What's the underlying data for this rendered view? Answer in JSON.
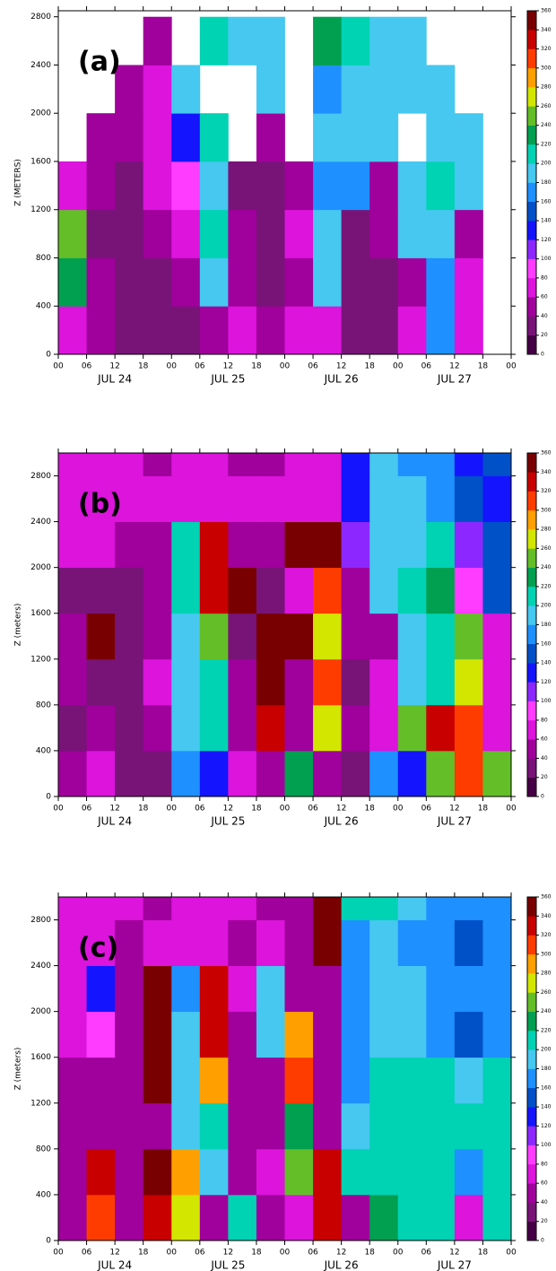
{
  "chart_data": [
    {
      "type": "heatmap",
      "panel_label": "(a)",
      "ylabel": "Z (METERS)",
      "xlim": [
        0,
        96
      ],
      "ylim": [
        0,
        2850
      ],
      "xticks": [
        {
          "value": 0,
          "label": "00"
        },
        {
          "value": 6,
          "label": "06"
        },
        {
          "value": 12,
          "label": "12"
        },
        {
          "value": 18,
          "label": "18"
        },
        {
          "value": 24,
          "label": "00"
        },
        {
          "value": 30,
          "label": "06"
        },
        {
          "value": 36,
          "label": "12"
        },
        {
          "value": 42,
          "label": "18"
        },
        {
          "value": 48,
          "label": "00"
        },
        {
          "value": 54,
          "label": "06"
        },
        {
          "value": 60,
          "label": "12"
        },
        {
          "value": 66,
          "label": "18"
        },
        {
          "value": 72,
          "label": "00"
        },
        {
          "value": 78,
          "label": "06"
        },
        {
          "value": 84,
          "label": "12"
        },
        {
          "value": 90,
          "label": "18"
        },
        {
          "value": 96,
          "label": "00"
        }
      ],
      "date_labels": [
        {
          "value": 12,
          "label": "JUL 24"
        },
        {
          "value": 36,
          "label": "JUL 25"
        },
        {
          "value": 60,
          "label": "JUL 26"
        },
        {
          "value": 84,
          "label": "JUL 27"
        }
      ],
      "yticks": [
        0,
        400,
        800,
        1200,
        1600,
        2000,
        2400,
        2800
      ],
      "x_edges": [
        0,
        6,
        12,
        18,
        24,
        30,
        36,
        42,
        48,
        54,
        60,
        66,
        72,
        78,
        84,
        90,
        96
      ],
      "y_edges": [
        0,
        400,
        800,
        1200,
        1600,
        2000,
        2400,
        2800
      ],
      "values": [
        [
          60,
          40,
          30,
          20,
          20,
          50,
          60,
          40,
          60,
          70,
          20,
          20,
          60,
          170,
          60,
          null
        ],
        [
          220,
          40,
          20,
          30,
          40,
          180,
          40,
          30,
          40,
          190,
          30,
          30,
          50,
          160,
          60,
          null
        ],
        [
          240,
          30,
          20,
          40,
          60,
          200,
          40,
          30,
          60,
          180,
          30,
          40,
          180,
          190,
          50,
          null
        ],
        [
          60,
          40,
          30,
          60,
          80,
          190,
          30,
          30,
          40,
          170,
          170,
          40,
          180,
          200,
          180,
          null
        ],
        [
          null,
          40,
          40,
          60,
          120,
          200,
          null,
          40,
          null,
          180,
          180,
          190,
          null,
          190,
          180,
          null
        ],
        [
          null,
          null,
          50,
          70,
          190,
          null,
          null,
          180,
          null,
          170,
          180,
          180,
          190,
          180,
          null,
          null
        ],
        [
          null,
          null,
          null,
          50,
          null,
          200,
          180,
          190,
          null,
          230,
          200,
          180,
          180,
          null,
          null,
          null
        ]
      ],
      "colorbar": {
        "lim": [
          0,
          360
        ],
        "ticks": [
          0,
          20,
          40,
          60,
          80,
          100,
          120,
          140,
          160,
          180,
          200,
          220,
          240,
          260,
          280,
          300,
          320,
          340,
          360
        ],
        "colors": [
          "#460046",
          "#781478",
          "#a0009b",
          "#dc14dc",
          "#ff3cff",
          "#8c28ff",
          "#1414ff",
          "#0050c8",
          "#1e90ff",
          "#46c8f0",
          "#00d2b4",
          "#00a050",
          "#64be28",
          "#d2e600",
          "#ffa000",
          "#ff3c00",
          "#c80000",
          "#780000"
        ]
      }
    },
    {
      "type": "heatmap",
      "panel_label": "(b)",
      "ylabel": "Z (meters)",
      "xlim": [
        0,
        96
      ],
      "ylim": [
        0,
        3000
      ],
      "xticks": [
        {
          "value": 0,
          "label": "00"
        },
        {
          "value": 6,
          "label": "06"
        },
        {
          "value": 12,
          "label": "12"
        },
        {
          "value": 18,
          "label": "18"
        },
        {
          "value": 24,
          "label": "00"
        },
        {
          "value": 30,
          "label": "06"
        },
        {
          "value": 36,
          "label": "12"
        },
        {
          "value": 42,
          "label": "18"
        },
        {
          "value": 48,
          "label": "00"
        },
        {
          "value": 54,
          "label": "06"
        },
        {
          "value": 60,
          "label": "12"
        },
        {
          "value": 66,
          "label": "18"
        },
        {
          "value": 72,
          "label": "00"
        },
        {
          "value": 78,
          "label": "06"
        },
        {
          "value": 84,
          "label": "12"
        },
        {
          "value": 90,
          "label": "18"
        },
        {
          "value": 96,
          "label": "00"
        }
      ],
      "date_labels": [
        {
          "value": 12,
          "label": "JUL 24"
        },
        {
          "value": 36,
          "label": "JUL 25"
        },
        {
          "value": 60,
          "label": "JUL 26"
        },
        {
          "value": 84,
          "label": "JUL 27"
        }
      ],
      "yticks": [
        0,
        400,
        800,
        1200,
        1600,
        2000,
        2400,
        2800
      ],
      "x_edges": [
        0,
        6,
        12,
        18,
        24,
        30,
        36,
        42,
        48,
        54,
        60,
        66,
        72,
        78,
        84,
        90,
        96
      ],
      "y_edges": [
        0,
        400,
        800,
        1200,
        1600,
        2000,
        2400,
        2800,
        3000
      ],
      "values": [
        [
          40,
          60,
          30,
          20,
          160,
          120,
          60,
          50,
          220,
          40,
          30,
          160,
          120,
          240,
          300,
          240
        ],
        [
          20,
          40,
          30,
          40,
          180,
          200,
          40,
          320,
          40,
          260,
          40,
          60,
          250,
          320,
          300,
          60
        ],
        [
          40,
          30,
          20,
          60,
          180,
          200,
          40,
          340,
          40,
          300,
          30,
          60,
          180,
          200,
          260,
          60
        ],
        [
          40,
          340,
          30,
          40,
          180,
          240,
          30,
          340,
          340,
          260,
          40,
          40,
          180,
          200,
          240,
          60
        ],
        [
          20,
          20,
          30,
          40,
          200,
          320,
          340,
          30,
          60,
          300,
          40,
          180,
          200,
          220,
          80,
          140
        ],
        [
          60,
          60,
          40,
          40,
          200,
          320,
          40,
          40,
          340,
          340,
          100,
          180,
          180,
          200,
          100,
          140
        ],
        [
          60,
          60,
          60,
          60,
          60,
          60,
          60,
          60,
          60,
          60,
          120,
          180,
          180,
          160,
          140,
          120
        ],
        [
          60,
          60,
          60,
          40,
          60,
          60,
          40,
          40,
          60,
          60,
          120,
          180,
          160,
          160,
          120,
          140
        ]
      ],
      "colorbar": {
        "lim": [
          0,
          360
        ],
        "ticks": [
          0,
          20,
          40,
          60,
          80,
          100,
          120,
          140,
          160,
          180,
          200,
          220,
          240,
          260,
          280,
          300,
          320,
          340,
          360
        ],
        "colors": [
          "#460046",
          "#781478",
          "#a0009b",
          "#dc14dc",
          "#ff3cff",
          "#8c28ff",
          "#1414ff",
          "#0050c8",
          "#1e90ff",
          "#46c8f0",
          "#00d2b4",
          "#00a050",
          "#64be28",
          "#d2e600",
          "#ffa000",
          "#ff3c00",
          "#c80000",
          "#780000"
        ]
      }
    },
    {
      "type": "heatmap",
      "panel_label": "(c)",
      "ylabel": "Z (meters)",
      "xlim": [
        0,
        96
      ],
      "ylim": [
        0,
        3000
      ],
      "xticks": [
        {
          "value": 0,
          "label": "00"
        },
        {
          "value": 6,
          "label": "06"
        },
        {
          "value": 12,
          "label": "12"
        },
        {
          "value": 18,
          "label": "18"
        },
        {
          "value": 24,
          "label": "00"
        },
        {
          "value": 30,
          "label": "06"
        },
        {
          "value": 36,
          "label": "12"
        },
        {
          "value": 42,
          "label": "18"
        },
        {
          "value": 48,
          "label": "00"
        },
        {
          "value": 54,
          "label": "06"
        },
        {
          "value": 60,
          "label": "12"
        },
        {
          "value": 66,
          "label": "18"
        },
        {
          "value": 72,
          "label": "00"
        },
        {
          "value": 78,
          "label": "06"
        },
        {
          "value": 84,
          "label": "12"
        },
        {
          "value": 90,
          "label": "18"
        },
        {
          "value": 96,
          "label": "00"
        }
      ],
      "date_labels": [
        {
          "value": 12,
          "label": "JUL 24"
        },
        {
          "value": 36,
          "label": "JUL 25"
        },
        {
          "value": 60,
          "label": "JUL 26"
        },
        {
          "value": 84,
          "label": "JUL 27"
        }
      ],
      "yticks": [
        0,
        400,
        800,
        1200,
        1600,
        2000,
        2400,
        2800
      ],
      "x_edges": [
        0,
        6,
        12,
        18,
        24,
        30,
        36,
        42,
        48,
        54,
        60,
        66,
        72,
        78,
        84,
        90,
        96
      ],
      "y_edges": [
        0,
        400,
        800,
        1200,
        1600,
        2000,
        2400,
        2800,
        3000
      ],
      "values": [
        [
          40,
          300,
          40,
          320,
          260,
          40,
          200,
          40,
          60,
          320,
          40,
          220,
          200,
          200,
          60,
          200
        ],
        [
          40,
          320,
          40,
          340,
          280,
          180,
          40,
          60,
          240,
          320,
          200,
          200,
          200,
          200,
          160,
          200
        ],
        [
          40,
          40,
          40,
          40,
          180,
          200,
          40,
          40,
          220,
          40,
          180,
          200,
          200,
          200,
          200,
          200
        ],
        [
          40,
          40,
          40,
          340,
          180,
          280,
          40,
          40,
          300,
          40,
          160,
          200,
          200,
          200,
          180,
          200
        ],
        [
          60,
          80,
          40,
          340,
          180,
          320,
          40,
          180,
          280,
          40,
          160,
          180,
          180,
          160,
          140,
          160
        ],
        [
          60,
          120,
          40,
          340,
          160,
          320,
          60,
          180,
          40,
          40,
          160,
          180,
          180,
          160,
          160,
          160
        ],
        [
          60,
          60,
          40,
          60,
          60,
          60,
          40,
          60,
          40,
          340,
          160,
          180,
          160,
          160,
          140,
          160
        ],
        [
          60,
          60,
          60,
          40,
          60,
          60,
          60,
          40,
          40,
          340,
          200,
          200,
          180,
          160,
          160,
          160
        ]
      ],
      "colorbar": {
        "lim": [
          0,
          360
        ],
        "ticks": [
          0,
          20,
          40,
          60,
          80,
          100,
          120,
          140,
          160,
          180,
          200,
          220,
          240,
          260,
          280,
          300,
          320,
          340,
          360
        ],
        "colors": [
          "#460046",
          "#781478",
          "#a0009b",
          "#dc14dc",
          "#ff3cff",
          "#8c28ff",
          "#1414ff",
          "#0050c8",
          "#1e90ff",
          "#46c8f0",
          "#00d2b4",
          "#00a050",
          "#64be28",
          "#d2e600",
          "#ffa000",
          "#ff3c00",
          "#c80000",
          "#780000"
        ]
      }
    }
  ]
}
